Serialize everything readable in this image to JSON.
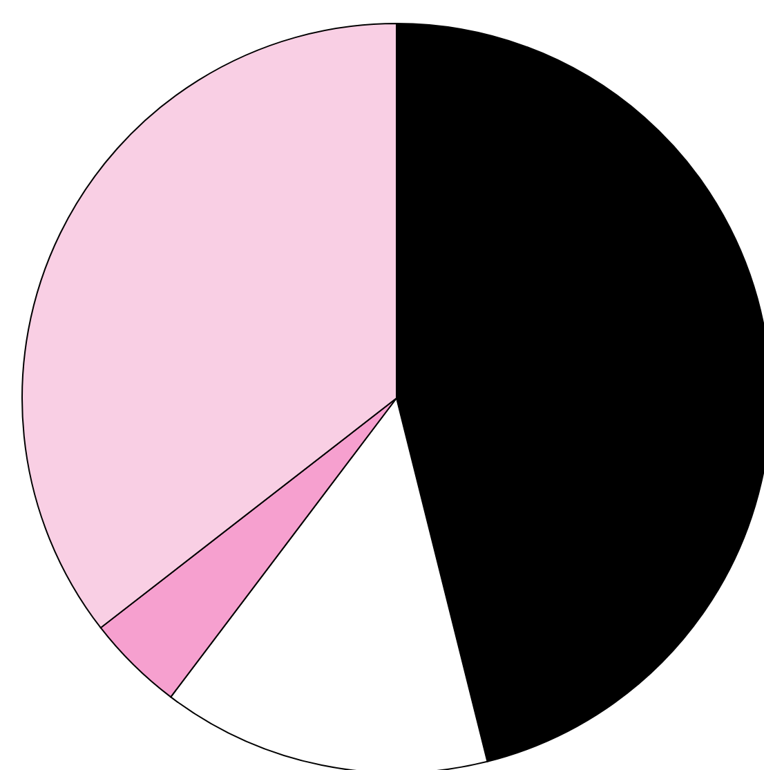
{
  "chart_data": {
    "type": "pie",
    "categories": [
      null,
      null,
      null,
      null
    ],
    "values": [
      46.1,
      14.2,
      4.2,
      35.5
    ],
    "colors": [
      "#000000",
      "#ffffff",
      "#f6a0cf",
      "#f9cfe4"
    ]
  }
}
